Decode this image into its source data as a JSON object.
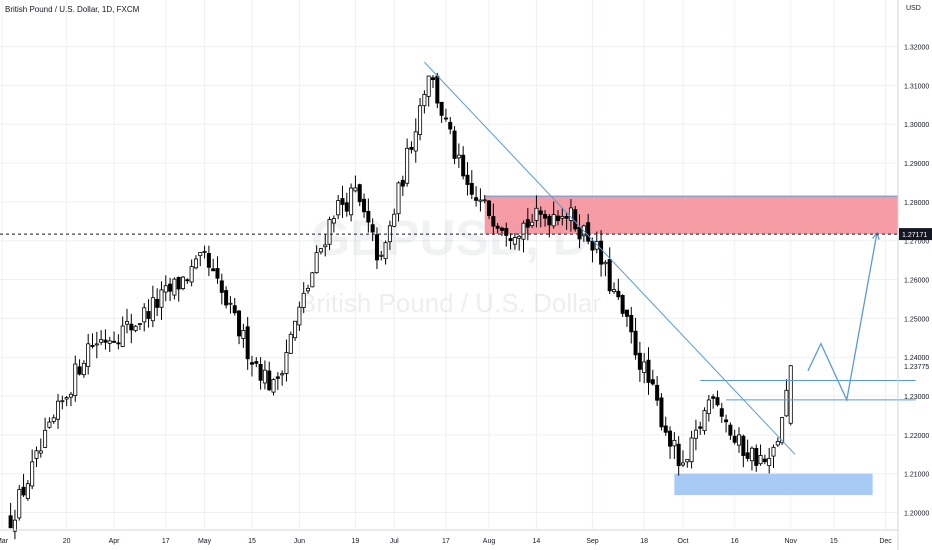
{
  "header": {
    "title": "British Pound / U.S. Dollar, 1D, FXCM",
    "currency": "USD"
  },
  "watermark": {
    "symbol": "GBPUSD, D",
    "name": "British Pound / U.S. Dollar"
  },
  "colors": {
    "up_candle": "#ffffff",
    "down_candle": "#000000",
    "resistance_zone": "#f48b95",
    "support_zone": "#9ec5f5",
    "drawing": "#5b9bd5"
  },
  "chart_data": {
    "type": "candlestick",
    "symbol": "GBPUSD",
    "interval": "1D",
    "source": "FXCM",
    "y_axis": {
      "ticks": [
        1.2,
        1.21,
        1.22,
        1.23,
        1.24,
        1.25,
        1.26,
        1.27,
        1.28,
        1.29,
        1.3,
        1.31,
        1.32
      ],
      "tick_labels": [
        "1.20000",
        "1.21000",
        "1.22000",
        "1.23000",
        "1.24000",
        "1.25000",
        "1.26000",
        "1.27000",
        "1.28000",
        "1.29000",
        "1.30000",
        "1.31000",
        "1.32000"
      ],
      "ylim": [
        1.1955,
        1.332
      ]
    },
    "x_axis": {
      "labels": [
        "Mar",
        "20",
        "Apr",
        "17",
        "May",
        "15",
        "Jun",
        "19",
        "Jul",
        "17",
        "Aug",
        "14",
        "Sep",
        "18",
        "Oct",
        "16",
        "Nov",
        "15",
        "Dec"
      ],
      "label_day_index": [
        0,
        15,
        26,
        38,
        47,
        58,
        69,
        82,
        91,
        103,
        113,
        124,
        137,
        149,
        158,
        170,
        183,
        193,
        205
      ]
    },
    "last_price": "1.23775",
    "crosshair_price": "1.27171",
    "key_points": [
      {
        "day": 2,
        "price": 1.1985
      },
      {
        "day": 20,
        "price": 1.243
      },
      {
        "day": 30,
        "price": 1.248
      },
      {
        "day": 47,
        "price": 1.265
      },
      {
        "day": 58,
        "price": 1.24
      },
      {
        "day": 63,
        "price": 1.232
      },
      {
        "day": 77,
        "price": 1.278
      },
      {
        "day": 82,
        "price": 1.282
      },
      {
        "day": 88,
        "price": 1.264
      },
      {
        "day": 99,
        "price": 1.314
      },
      {
        "day": 108,
        "price": 1.282
      },
      {
        "day": 118,
        "price": 1.273
      },
      {
        "day": 130,
        "price": 1.278
      },
      {
        "day": 137,
        "price": 1.27
      },
      {
        "day": 145,
        "price": 1.248
      },
      {
        "day": 158,
        "price": 1.21
      },
      {
        "day": 165,
        "price": 1.232
      },
      {
        "day": 170,
        "price": 1.218
      },
      {
        "day": 178,
        "price": 1.212
      },
      {
        "day": 181,
        "price": 1.223
      },
      {
        "day": 183,
        "price": 1.2378
      }
    ],
    "drawings": {
      "resistance_zone": {
        "price_top": 1.2815,
        "price_bottom": 1.2717,
        "day_start": 112
      },
      "support_zone": {
        "price_top": 1.21,
        "price_bottom": 1.2045,
        "day_start": 156,
        "day_end": 202
      },
      "trendline": {
        "start": {
          "day": 98,
          "price": 1.316
        },
        "end": {
          "day": 184,
          "price": 1.215
        }
      },
      "horizontal_levels": [
        {
          "price": 1.234,
          "day_start": 162,
          "day_end": 212
        },
        {
          "price": 1.229,
          "day_start": 168,
          "day_end": 212
        }
      ],
      "projection_path": [
        {
          "day": 187,
          "price": 1.2365
        },
        {
          "day": 190,
          "price": 1.2435
        },
        {
          "day": 196,
          "price": 1.229
        },
        {
          "day": 203,
          "price": 1.272
        }
      ]
    }
  }
}
